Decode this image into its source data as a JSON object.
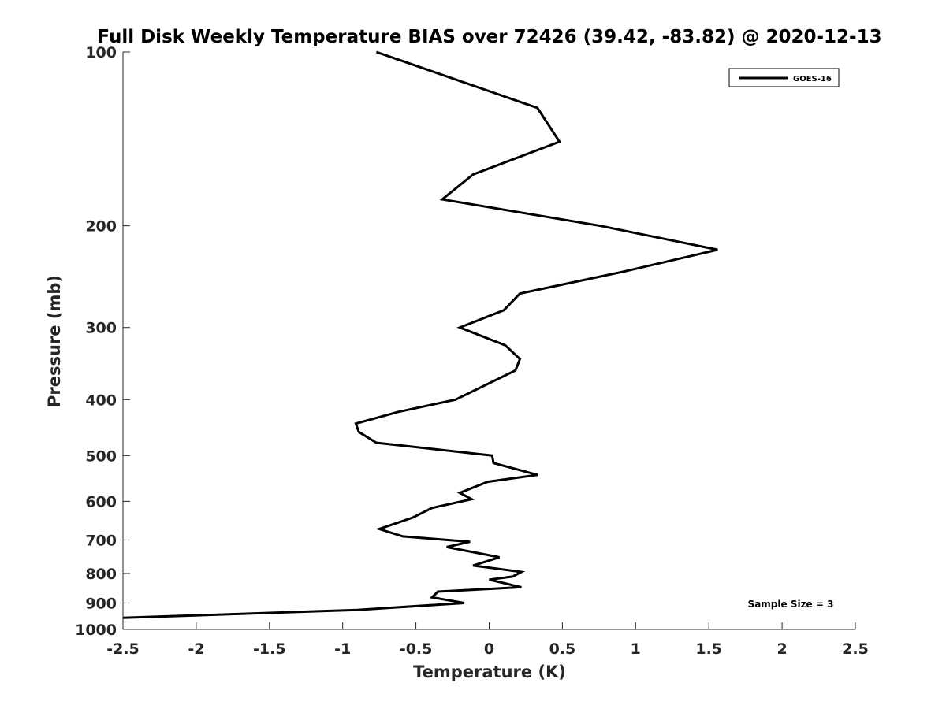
{
  "chart_data": {
    "type": "line",
    "title": "Full Disk Weekly Temperature BIAS over 72426 (39.42, -83.82) @ 2020-12-13",
    "xlabel": "Temperature (K)",
    "ylabel": "Pressure (mb)",
    "xlim": [
      -2.5,
      2.5
    ],
    "ylim": [
      100,
      1000
    ],
    "y_scale": "log",
    "y_reversed": true,
    "x_ticks": [
      -2.5,
      -2,
      -1.5,
      -1,
      -0.5,
      0,
      0.5,
      1,
      1.5,
      2,
      2.5
    ],
    "x_tick_labels": [
      "-2.5",
      "-2",
      "-1.5",
      "-1",
      "-0.5",
      "0",
      "0.5",
      "1",
      "1.5",
      "2",
      "2.5"
    ],
    "y_ticks": [
      100,
      200,
      300,
      400,
      500,
      600,
      700,
      800,
      900,
      1000
    ],
    "y_tick_labels": [
      "100",
      "200",
      "300",
      "400",
      "500",
      "600",
      "700",
      "800",
      "900",
      "1000"
    ],
    "grid": false,
    "legend_position": "top-right",
    "annotation": "Sample Size = 3",
    "line_color": "#000000",
    "series": [
      {
        "name": "GOES-16",
        "points": [
          {
            "x": -0.77,
            "y": 100
          },
          {
            "x": 0.33,
            "y": 125
          },
          {
            "x": 0.48,
            "y": 143
          },
          {
            "x": -0.11,
            "y": 163
          },
          {
            "x": -0.32,
            "y": 180
          },
          {
            "x": 0.76,
            "y": 200
          },
          {
            "x": 1.56,
            "y": 220
          },
          {
            "x": 0.92,
            "y": 240
          },
          {
            "x": 0.21,
            "y": 262
          },
          {
            "x": 0.1,
            "y": 280
          },
          {
            "x": -0.2,
            "y": 300
          },
          {
            "x": 0.11,
            "y": 322
          },
          {
            "x": 0.21,
            "y": 340
          },
          {
            "x": 0.18,
            "y": 356
          },
          {
            "x": -0.23,
            "y": 400
          },
          {
            "x": -0.62,
            "y": 420
          },
          {
            "x": -0.91,
            "y": 440
          },
          {
            "x": -0.89,
            "y": 455
          },
          {
            "x": -0.77,
            "y": 475
          },
          {
            "x": 0.02,
            "y": 500
          },
          {
            "x": 0.03,
            "y": 515
          },
          {
            "x": 0.33,
            "y": 540
          },
          {
            "x": -0.01,
            "y": 555
          },
          {
            "x": -0.2,
            "y": 580
          },
          {
            "x": -0.12,
            "y": 595
          },
          {
            "x": -0.39,
            "y": 616
          },
          {
            "x": -0.52,
            "y": 640
          },
          {
            "x": -0.75,
            "y": 670
          },
          {
            "x": -0.59,
            "y": 690
          },
          {
            "x": -0.13,
            "y": 705
          },
          {
            "x": -0.29,
            "y": 720
          },
          {
            "x": 0.07,
            "y": 750
          },
          {
            "x": -0.11,
            "y": 775
          },
          {
            "x": 0.22,
            "y": 795
          },
          {
            "x": 0.16,
            "y": 810
          },
          {
            "x": 0.0,
            "y": 820
          },
          {
            "x": 0.22,
            "y": 845
          },
          {
            "x": -0.35,
            "y": 860
          },
          {
            "x": -0.39,
            "y": 880
          },
          {
            "x": -0.17,
            "y": 900
          },
          {
            "x": -0.9,
            "y": 925
          },
          {
            "x": -2.5,
            "y": 955
          }
        ]
      }
    ]
  }
}
